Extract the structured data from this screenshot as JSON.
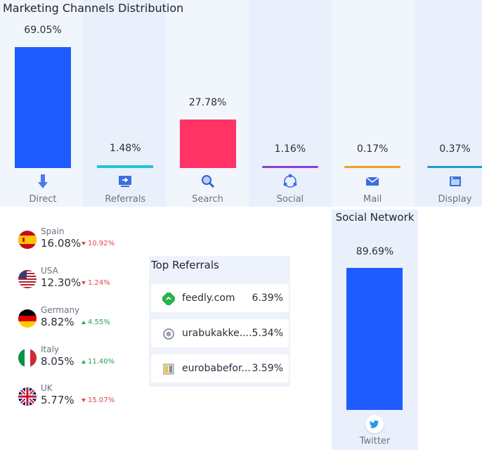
{
  "marketing": {
    "title": "Marketing Channels Distribution"
  },
  "chart_data": [
    {
      "type": "bar",
      "title": "Marketing Channels Distribution",
      "categories": [
        "Direct",
        "Referrals",
        "Search",
        "Social",
        "Mail",
        "Display"
      ],
      "values": [
        69.05,
        1.48,
        27.78,
        1.16,
        0.17,
        0.37
      ],
      "value_labels": [
        "69.05%",
        "1.48%",
        "27.78%",
        "1.16%",
        "0.17%",
        "0.37%"
      ],
      "colors": [
        "#1e5cff",
        "#1fc3d6",
        "#ff3366",
        "#8a3fd8",
        "#f0a020",
        "#1aa0c8"
      ],
      "icons": [
        "arrow-down-icon",
        "referral-icon",
        "search-icon",
        "social-icon",
        "mail-icon",
        "display-icon"
      ],
      "ylim": [
        0,
        69.05
      ]
    },
    {
      "type": "bar",
      "title": "Social Network",
      "categories": [
        "Twitter"
      ],
      "values": [
        89.69
      ],
      "value_labels": [
        "89.69%"
      ],
      "colors": [
        "#1e5cff"
      ],
      "ylim": [
        0,
        89.69
      ]
    }
  ],
  "countries": [
    {
      "name": "Spain",
      "pct": "16.08%",
      "delta": "10.92%",
      "dir": "down",
      "flag": "spain-flag"
    },
    {
      "name": "USA",
      "pct": "12.30%",
      "delta": "1.24%",
      "dir": "down",
      "flag": "usa-flag"
    },
    {
      "name": "Germany",
      "pct": "8.82%",
      "delta": "4.55%",
      "dir": "up",
      "flag": "germany-flag"
    },
    {
      "name": "Italy",
      "pct": "8.05%",
      "delta": "11.40%",
      "dir": "up",
      "flag": "italy-flag"
    },
    {
      "name": "UK",
      "pct": "5.77%",
      "delta": "15.07%",
      "dir": "down",
      "flag": "uk-flag"
    }
  ],
  "referrals": {
    "title": "Top Referrals",
    "items": [
      {
        "name": "feedly.com",
        "pct": "6.39%",
        "icon": "feedly-icon"
      },
      {
        "name": "urabukakke....",
        "pct": "5.34%",
        "icon": "globe-icon"
      },
      {
        "name": "eurobabefor...",
        "pct": "3.59%",
        "icon": "site-icon"
      }
    ]
  },
  "social": {
    "title": "Social Network",
    "network": "Twitter",
    "pct": "89.69%"
  }
}
